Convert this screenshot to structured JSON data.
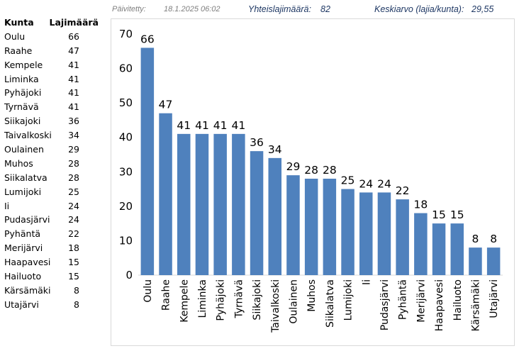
{
  "header": {
    "updated_label": "Päivitetty:",
    "updated_value": "18.1.2025 06:02",
    "total_label": "Yhteislajimäärä:",
    "total_value": "82",
    "avg_label": "Keskiarvo (lajia/kunta):",
    "avg_value": "29,55"
  },
  "table": {
    "col_name": "Kunta",
    "col_count": "Lajimäärä",
    "rows": [
      {
        "name": "Oulu",
        "count": "66"
      },
      {
        "name": "Raahe",
        "count": "47"
      },
      {
        "name": "Kempele",
        "count": "41"
      },
      {
        "name": "Liminka",
        "count": "41"
      },
      {
        "name": "Pyhäjoki",
        "count": "41"
      },
      {
        "name": "Tyrnävä",
        "count": "41"
      },
      {
        "name": "Siikajoki",
        "count": "36"
      },
      {
        "name": "Taivalkoski",
        "count": "34"
      },
      {
        "name": "Oulainen",
        "count": "29"
      },
      {
        "name": "Muhos",
        "count": "28"
      },
      {
        "name": "Siikalatva",
        "count": "28"
      },
      {
        "name": "Lumijoki",
        "count": "25"
      },
      {
        "name": "Ii",
        "count": "24"
      },
      {
        "name": "Pudasjärvi",
        "count": "24"
      },
      {
        "name": "Pyhäntä",
        "count": "22"
      },
      {
        "name": "Merijärvi",
        "count": "18"
      },
      {
        "name": "Haapavesi",
        "count": "15"
      },
      {
        "name": "Hailuoto",
        "count": "15"
      },
      {
        "name": "Kärsämäki",
        "count": "8"
      },
      {
        "name": "Utajärvi",
        "count": "8"
      }
    ]
  },
  "chart_data": {
    "type": "bar",
    "categories": [
      "Oulu",
      "Raahe",
      "Kempele",
      "Liminka",
      "Pyhäjoki",
      "Tyrnävä",
      "Siikajoki",
      "Taivalkoski",
      "Oulainen",
      "Muhos",
      "Siikalatva",
      "Lumijoki",
      "Ii",
      "Pudasjärvi",
      "Pyhäntä",
      "Merijärvi",
      "Haapavesi",
      "Hailuoto",
      "Kärsämäki",
      "Utajärvi"
    ],
    "values": [
      66,
      47,
      41,
      41,
      41,
      41,
      36,
      34,
      29,
      28,
      28,
      25,
      24,
      24,
      22,
      18,
      15,
      15,
      8,
      8
    ],
    "ylim": [
      0,
      70
    ],
    "yticks": [
      0,
      10,
      20,
      30,
      40,
      50,
      60,
      70
    ],
    "grid": false,
    "data_labels": true,
    "bar_color": "#4f81bd"
  }
}
